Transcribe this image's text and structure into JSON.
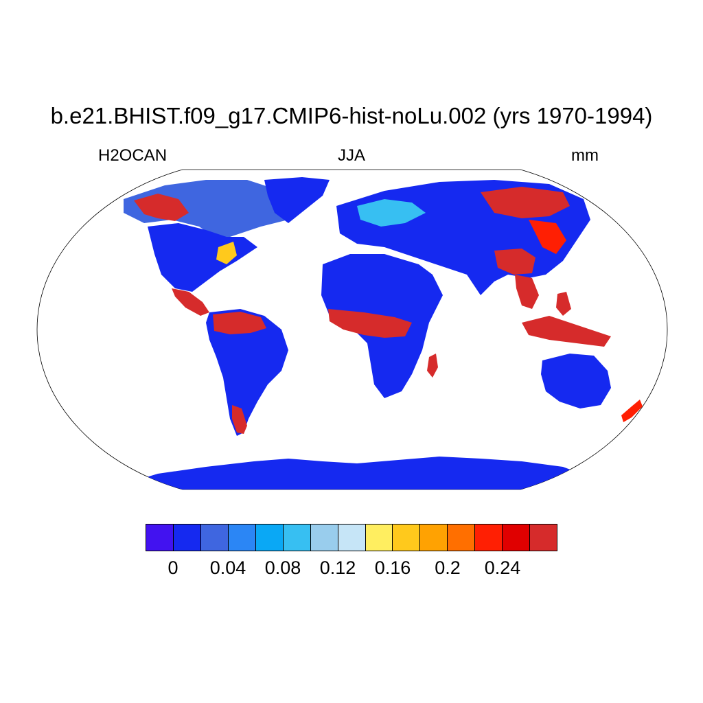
{
  "title": "b.e21.BHIST.f09_g17.CMIP6-hist-noLu.002 (yrs 1970-1994)",
  "subtitle_left": "H2OCAN",
  "subtitle_center": "JJA",
  "subtitle_right": "mm",
  "projection": "robinson",
  "colorbar": {
    "colors": [
      "#4212f0",
      "#1529f0",
      "#3f66e0",
      "#2b86f5",
      "#0aa8f5",
      "#37bff2",
      "#99cded",
      "#c6e5f7",
      "#ffee60",
      "#ffc91c",
      "#ffa202",
      "#ff6f00",
      "#ff1f03",
      "#e00000",
      "#d62b2b"
    ],
    "labels": [
      {
        "text": "0",
        "index": 1
      },
      {
        "text": "0.04",
        "index": 3
      },
      {
        "text": "0.08",
        "index": 5
      },
      {
        "text": "0.12",
        "index": 7
      },
      {
        "text": "0.16",
        "index": 9
      },
      {
        "text": "0.2",
        "index": 11
      },
      {
        "text": "0.24",
        "index": 13
      }
    ]
  },
  "regions": [
    {
      "name": "north-america-boreal",
      "color": "#3f66e0"
    },
    {
      "name": "alaska-yukon",
      "color": "#d62b2b"
    },
    {
      "name": "north-america-interior",
      "color": "#1529f0"
    },
    {
      "name": "central-america",
      "color": "#d62b2b"
    },
    {
      "name": "amazon",
      "color": "#d62b2b"
    },
    {
      "name": "south-america",
      "color": "#1529f0"
    },
    {
      "name": "greenland",
      "color": "#1529f0"
    },
    {
      "name": "africa",
      "color": "#1529f0"
    },
    {
      "name": "central-africa",
      "color": "#d62b2b"
    },
    {
      "name": "eurasia",
      "color": "#1529f0"
    },
    {
      "name": "siberia",
      "color": "#d62b2b"
    },
    {
      "name": "south-east-asia",
      "color": "#d62b2b"
    },
    {
      "name": "australia",
      "color": "#1529f0"
    },
    {
      "name": "antarctica",
      "color": "#1529f0"
    },
    {
      "name": "new-zealand",
      "color": "#ff1f03"
    }
  ]
}
